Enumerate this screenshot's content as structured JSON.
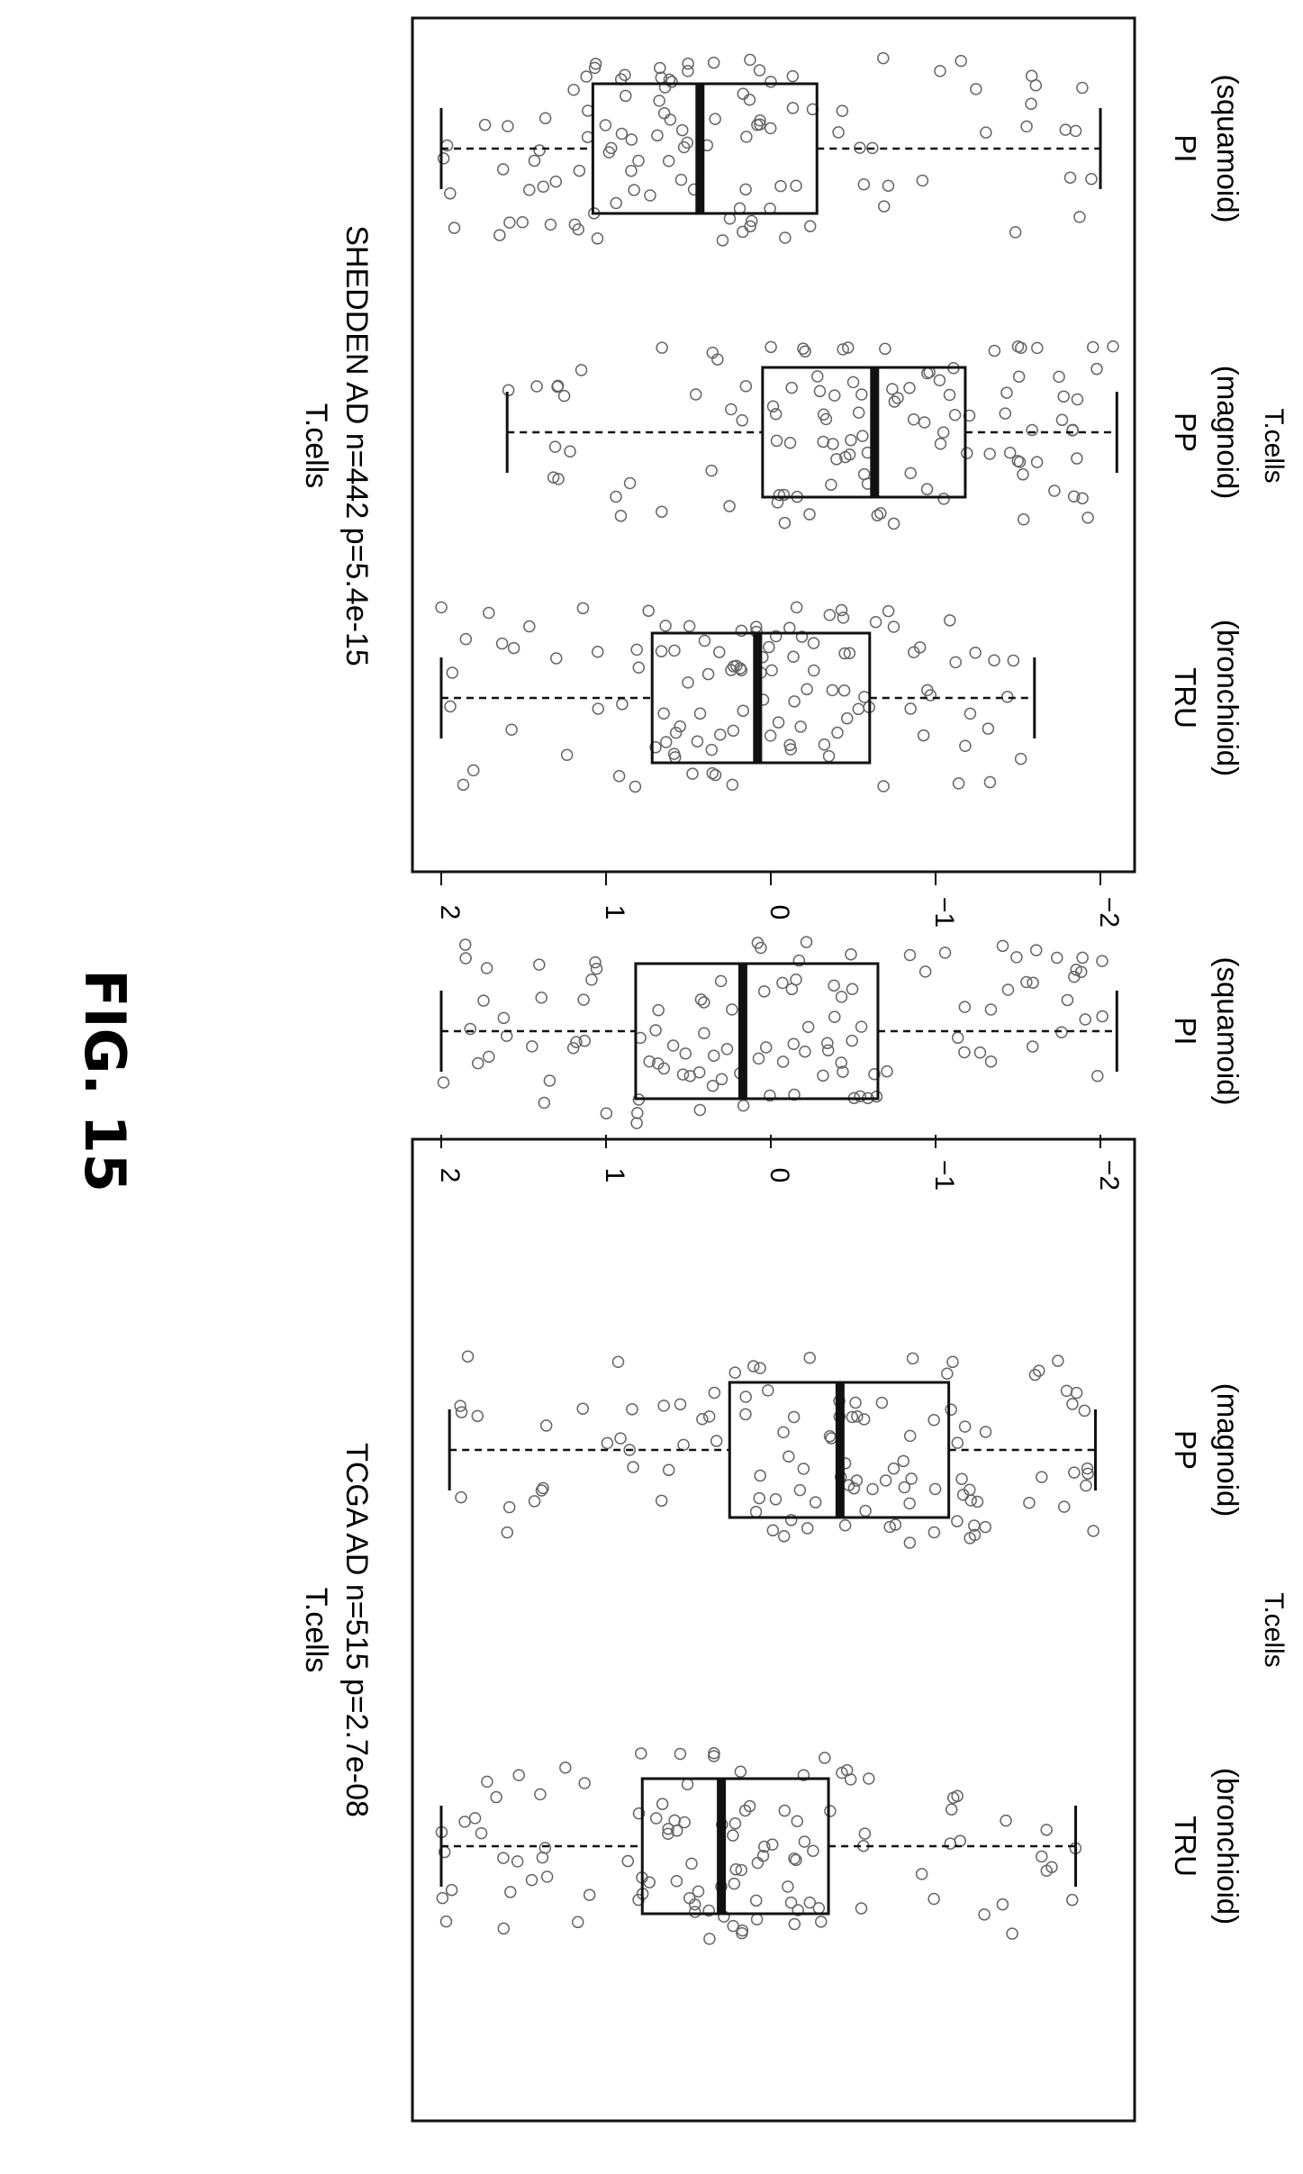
{
  "figure_title": "FIG. 15",
  "chart_data": [
    {
      "type": "box",
      "title": "T.cells",
      "subtitle": "TCGA AD n=515 p=2.7e-08",
      "ylabel": "T.cells",
      "xlabel": "",
      "ylim": [
        -2.1,
        2.1
      ],
      "yticks": [
        2,
        1,
        0,
        -1,
        -2
      ],
      "categories": [
        {
          "line1": "TRU",
          "line2": "(bronchioid)"
        },
        {
          "line1": "PP",
          "line2": "(magnoid)"
        },
        {
          "line1": "PI",
          "line2": "(squamoid)"
        }
      ],
      "boxes": [
        {
          "whisker_low": -1.85,
          "q1": -0.35,
          "median": 0.3,
          "q3": 0.78,
          "whisker_high": 2.0
        },
        {
          "whisker_low": -1.97,
          "q1": -1.08,
          "median": -0.42,
          "q3": 0.25,
          "whisker_high": 1.95
        },
        {
          "whisker_low": -2.1,
          "q1": -0.65,
          "median": 0.17,
          "q3": 0.82,
          "whisker_high": 2.0
        }
      ],
      "grid": false
    },
    {
      "type": "box",
      "title": "T.cells",
      "subtitle": "SHEDDEN AD n=442 p=5.4e-15",
      "ylabel": "T.cells",
      "xlabel": "",
      "ylim": [
        -2.1,
        2.1
      ],
      "yticks": [
        2,
        1,
        0,
        -1,
        -2
      ],
      "categories": [
        {
          "line1": "TRU",
          "line2": "(bronchioid)"
        },
        {
          "line1": "PP",
          "line2": "(magnoid)"
        },
        {
          "line1": "PI",
          "line2": "(squamoid)"
        }
      ],
      "boxes": [
        {
          "whisker_low": -1.6,
          "q1": -0.6,
          "median": 0.08,
          "q3": 0.72,
          "whisker_high": 2.0
        },
        {
          "whisker_low": -2.1,
          "q1": -1.18,
          "median": -0.63,
          "q3": 0.05,
          "whisker_high": 1.6
        },
        {
          "whisker_low": -2.0,
          "q1": -0.28,
          "median": 0.43,
          "q3": 1.08,
          "whisker_high": 2.0
        }
      ],
      "grid": false
    }
  ]
}
